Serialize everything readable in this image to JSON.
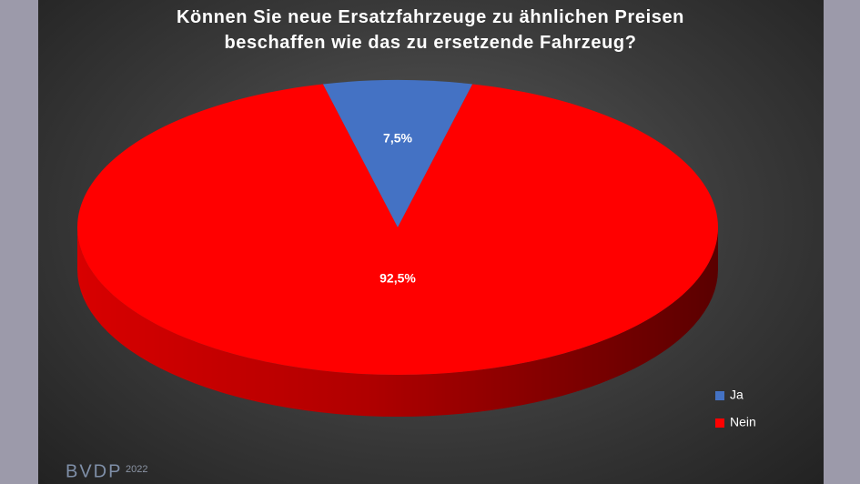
{
  "chart_data": {
    "type": "pie3d",
    "title": "Können Sie neue Ersatzfahrzeuge zu ähnlichen Preisen beschaffen wie das zu ersetzende Fahrzeug?",
    "categories": [
      "Ja",
      "Nein"
    ],
    "values": [
      7.5,
      92.5
    ],
    "value_labels": [
      "7,5%",
      "92,5%"
    ],
    "colors": [
      "#4472c4",
      "#ff0000"
    ],
    "legend": "bottom-right",
    "logo": "BVDP",
    "logo_year": "2022"
  }
}
